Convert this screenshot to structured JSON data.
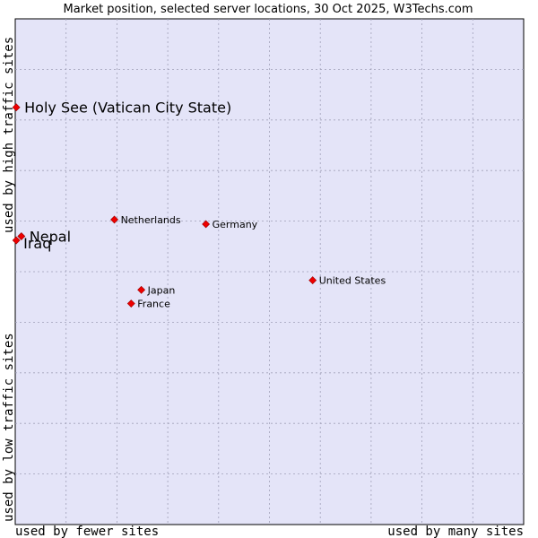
{
  "chart_data": {
    "type": "scatter",
    "title": "Market position, selected server locations, 30 Oct 2025, W3Techs.com",
    "xlabel_left": "used by fewer sites",
    "xlabel_right": "used by many sites",
    "ylabel_top": "used by high traffic sites",
    "ylabel_bottom": "used by low traffic sites",
    "xlim": [
      0,
      100
    ],
    "ylim": [
      0,
      100
    ],
    "grid": true,
    "colors": {
      "plot_background": "#e4e4f8",
      "grid": "#a0a0b8",
      "marker": "#ee0000",
      "text": "#000000"
    },
    "points": [
      {
        "label": "Holy See (Vatican City State)",
        "x": 0.2,
        "y": 82.5,
        "emphasis": "large"
      },
      {
        "label": "Nepal",
        "x": 1.2,
        "y": 57.0,
        "emphasis": "large"
      },
      {
        "label": "Iraq",
        "x": 0.2,
        "y": 56.2,
        "emphasis": "large"
      },
      {
        "label": "Netherlands",
        "x": 19.5,
        "y": 60.3,
        "emphasis": "small"
      },
      {
        "label": "Germany",
        "x": 37.5,
        "y": 59.4,
        "emphasis": "small"
      },
      {
        "label": "United States",
        "x": 58.5,
        "y": 48.3,
        "emphasis": "small"
      },
      {
        "label": "Japan",
        "x": 24.8,
        "y": 46.4,
        "emphasis": "small"
      },
      {
        "label": "France",
        "x": 22.8,
        "y": 43.7,
        "emphasis": "small"
      }
    ]
  }
}
